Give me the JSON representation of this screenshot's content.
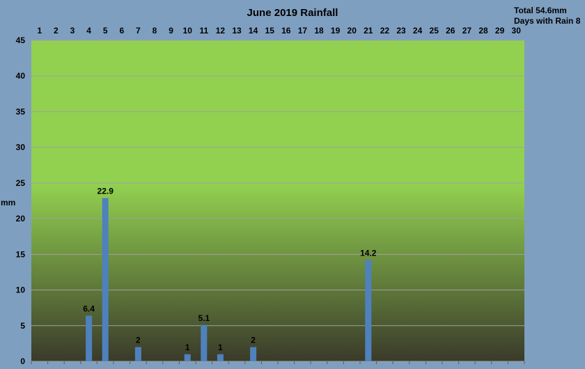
{
  "chart_data": {
    "type": "bar",
    "title": "June 2019 Rainfall",
    "ylabel": "mm",
    "xlabel": "",
    "categories": [
      "1",
      "2",
      "3",
      "4",
      "5",
      "6",
      "7",
      "8",
      "9",
      "10",
      "11",
      "12",
      "13",
      "14",
      "15",
      "16",
      "17",
      "18",
      "19",
      "20",
      "21",
      "22",
      "23",
      "24",
      "25",
      "26",
      "27",
      "28",
      "29",
      "30"
    ],
    "values": [
      0,
      0,
      0,
      6.4,
      22.9,
      0,
      2,
      0,
      0,
      1,
      5.1,
      1,
      0,
      2,
      0,
      0,
      0,
      0,
      0,
      0,
      14.2,
      0,
      0,
      0,
      0,
      0,
      0,
      0,
      0,
      0
    ],
    "data_labels": [
      "",
      "",
      "",
      "6.4",
      "22.9",
      "",
      "2",
      "",
      "",
      "1",
      "5.1",
      "1",
      "",
      "2",
      "",
      "",
      "",
      "",
      "",
      "",
      "14.2",
      "",
      "",
      "",
      "",
      "",
      "",
      "",
      "",
      ""
    ],
    "ylim": [
      0,
      45
    ],
    "yticks": [
      0,
      5,
      10,
      15,
      20,
      25,
      30,
      35,
      40,
      45
    ],
    "grid": true,
    "x_axis_position": "top",
    "colors": {
      "bar": "#4f81bd",
      "plot_top": "#92d050",
      "plot_bottom": "#3a3a2a",
      "background": "#7f9fc0",
      "grid": "#a0a0a0"
    }
  },
  "summary": {
    "total": "Total 54.6mm",
    "rain_days": "Days with Rain 8"
  }
}
